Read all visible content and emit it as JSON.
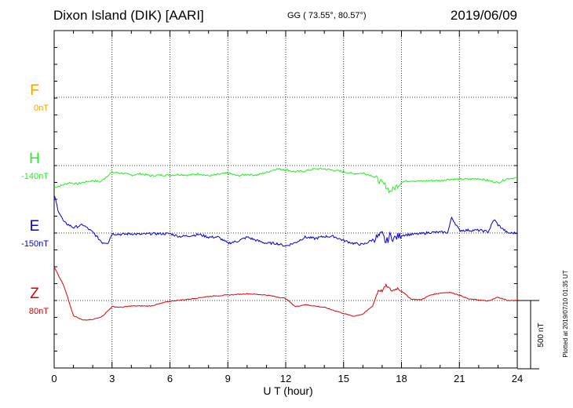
{
  "header": {
    "title": "Dixon Island (DIK)  [AARI]",
    "coords": "GG ( 73.55°,  80.57°)",
    "date": "2019/06/09"
  },
  "footer": {
    "plotted": "Plotted at 2019/07/10 01:35 UT",
    "scale_label": "500 nT"
  },
  "chart_data": {
    "type": "line",
    "title": "Dixon Island (DIK)  [AARI]",
    "xlabel": "U T (hour)",
    "ylabel": "",
    "xlim": [
      0,
      24
    ],
    "x_ticks": [
      "0",
      "3",
      "6",
      "9",
      "12",
      "15",
      "18",
      "21",
      "24"
    ],
    "grid": true,
    "scale_nT": 500,
    "series": [
      {
        "name": "F",
        "baseline_label": "0nT",
        "color": "#f5a000",
        "baseline": 0,
        "x": [],
        "values": []
      },
      {
        "name": "H",
        "baseline_label": "-140nT",
        "color": "#22ee22",
        "baseline": -140,
        "x": [
          0,
          0.4,
          0.8,
          1.2,
          1.6,
          2.0,
          2.4,
          2.8,
          3.0,
          3.5,
          4.0,
          4.5,
          5.0,
          5.5,
          6.0,
          6.5,
          7.0,
          7.5,
          8.0,
          8.5,
          9.0,
          9.5,
          10.0,
          10.5,
          11.0,
          11.5,
          12.0,
          12.5,
          13.0,
          13.5,
          14.0,
          14.5,
          15.0,
          15.5,
          16.0,
          16.5,
          16.8,
          17.0,
          17.2,
          17.4,
          17.6,
          18.0,
          18.5,
          19.0,
          19.5,
          20.0,
          20.5,
          21.0,
          21.5,
          22.0,
          22.5,
          23.0,
          23.5,
          24.0
        ],
        "values": [
          -160,
          -145,
          -125,
          -135,
          -120,
          -110,
          -120,
          -70,
          -50,
          -55,
          -70,
          -60,
          -75,
          -70,
          -70,
          -65,
          -70,
          -60,
          -75,
          -65,
          -55,
          -75,
          -65,
          -70,
          -50,
          -25,
          -30,
          -45,
          -40,
          -25,
          -25,
          -35,
          -45,
          -60,
          -55,
          -75,
          -105,
          -130,
          -150,
          -190,
          -170,
          -120,
          -110,
          -115,
          -110,
          -110,
          -100,
          -100,
          -100,
          -95,
          -110,
          -125,
          -95,
          -90
        ]
      },
      {
        "name": "E",
        "baseline_label": "-150nT",
        "color": "#0000dd",
        "baseline": -150,
        "x": [
          0,
          0.2,
          0.5,
          1.0,
          1.5,
          2.0,
          2.5,
          2.8,
          3.0,
          3.5,
          4.0,
          4.5,
          5.0,
          5.5,
          6.0,
          6.5,
          7.0,
          7.5,
          8.0,
          8.5,
          9.0,
          9.5,
          10.0,
          10.5,
          11.0,
          11.5,
          12.0,
          12.5,
          13.0,
          13.5,
          14.0,
          14.5,
          15.0,
          15.5,
          16.0,
          16.5,
          17.0,
          17.2,
          17.4,
          17.6,
          18.0,
          18.5,
          19.0,
          19.5,
          20.0,
          20.4,
          20.6,
          21.0,
          21.5,
          22.0,
          22.5,
          22.8,
          23.0,
          23.5,
          24.0
        ],
        "values": [
          280,
          170,
          80,
          40,
          60,
          5,
          -70,
          -70,
          -5,
          -10,
          -5,
          -10,
          -5,
          -5,
          -5,
          -25,
          -20,
          -10,
          -30,
          -30,
          -75,
          -60,
          -30,
          -55,
          -75,
          -75,
          -95,
          -70,
          -30,
          -40,
          -25,
          -25,
          -55,
          -75,
          -85,
          -50,
          -10,
          -70,
          -20,
          -40,
          -15,
          -10,
          -5,
          5,
          5,
          5,
          115,
          20,
          20,
          20,
          10,
          100,
          60,
          0,
          0
        ]
      },
      {
        "name": "Z",
        "baseline_label": "80nT",
        "color": "#dd0000",
        "baseline": 80,
        "x": [
          0,
          0.5,
          1.0,
          1.5,
          2.0,
          2.5,
          3.0,
          3.5,
          4.0,
          5.0,
          6.0,
          7.0,
          8.0,
          9.0,
          10.0,
          11.0,
          12.0,
          12.5,
          13.0,
          14.0,
          15.0,
          15.5,
          16.0,
          16.5,
          16.8,
          17.0,
          17.2,
          17.5,
          17.8,
          18.0,
          18.5,
          19.0,
          19.5,
          20.0,
          20.5,
          21.0,
          21.5,
          22.0,
          22.5,
          23.0,
          23.5,
          24.0
        ],
        "values": [
          245,
          110,
          -110,
          -145,
          -140,
          -115,
          -45,
          -50,
          -40,
          -40,
          -5,
          10,
          30,
          40,
          50,
          40,
          15,
          -45,
          -30,
          -50,
          -95,
          -115,
          -100,
          -40,
          75,
          70,
          110,
          70,
          90,
          70,
          10,
          5,
          40,
          55,
          60,
          40,
          10,
          5,
          -5,
          25,
          0,
          0
        ]
      }
    ]
  }
}
